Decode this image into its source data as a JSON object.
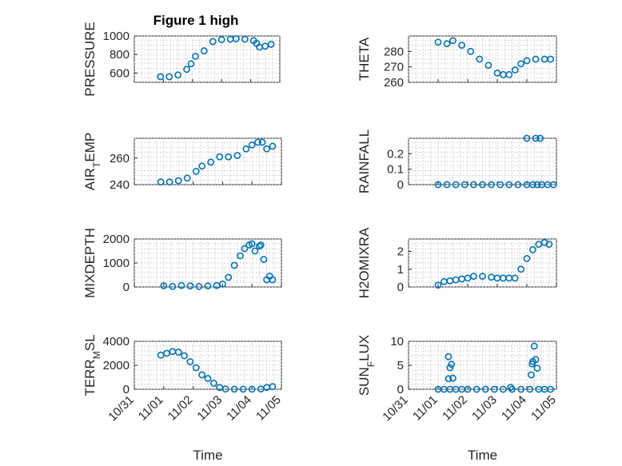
{
  "figure_title": "Figure 1 high",
  "colors": {
    "marker": "#0072BD",
    "axes": "#262626",
    "grid": "#b4b4b4"
  },
  "chart_data": [
    {
      "type": "scatter",
      "panel": "top-left",
      "ylabel_parts": [
        "PRESSURE"
      ],
      "xlabel": "",
      "title": "Figure 1 high",
      "x_ticks": [
        "10/31",
        "11/01",
        "11/02",
        "11/03",
        "11/04",
        "11/05"
      ],
      "xlim": [
        0,
        5
      ],
      "ylim": [
        500,
        1000
      ],
      "y_ticks": [
        600,
        800,
        1000
      ],
      "grid": true,
      "series": [
        {
          "x": [
            0.9,
            1.2,
            1.5,
            1.8,
            1.95,
            2.1,
            2.4,
            2.7,
            3.0,
            3.3,
            3.5,
            3.8,
            4.1,
            4.2,
            4.3,
            4.5,
            4.7
          ],
          "y": [
            560,
            560,
            580,
            640,
            700,
            780,
            840,
            940,
            960,
            965,
            970,
            965,
            950,
            920,
            880,
            890,
            910
          ]
        }
      ]
    },
    {
      "type": "scatter",
      "panel": "top-right",
      "ylabel_parts": [
        "THETA"
      ],
      "xlabel": "",
      "x_ticks": [
        "10/31",
        "11/01",
        "11/02",
        "11/03",
        "11/04",
        "11/05"
      ],
      "xlim": [
        0,
        5
      ],
      "ylim": [
        260,
        290
      ],
      "y_ticks": [
        260,
        270,
        280
      ],
      "grid": true,
      "series": [
        {
          "x": [
            1.0,
            1.3,
            1.5,
            1.8,
            2.1,
            2.4,
            2.7,
            3.0,
            3.2,
            3.4,
            3.6,
            3.8,
            4.0,
            4.3,
            4.6,
            4.8
          ],
          "y": [
            286,
            285,
            287,
            284,
            280,
            275,
            271,
            266,
            265,
            265,
            268,
            272,
            274,
            275,
            275,
            275
          ]
        }
      ]
    },
    {
      "type": "scatter",
      "panel": "row2-left",
      "ylabel_parts": [
        "AIR",
        "T",
        "EMP"
      ],
      "xlabel": "",
      "x_ticks": [
        "10/31",
        "11/01",
        "11/02",
        "11/03",
        "11/04",
        "11/05"
      ],
      "xlim": [
        0,
        5
      ],
      "ylim": [
        240,
        275
      ],
      "y_ticks": [
        240,
        260
      ],
      "grid": true,
      "series": [
        {
          "x": [
            0.9,
            1.2,
            1.5,
            1.8,
            2.1,
            2.3,
            2.6,
            2.9,
            3.2,
            3.5,
            3.8,
            4.0,
            4.2,
            4.35,
            4.5,
            4.7
          ],
          "y": [
            242,
            242,
            243,
            245,
            250,
            254,
            257,
            261,
            261,
            262,
            267,
            270,
            272,
            272,
            267,
            269
          ]
        }
      ]
    },
    {
      "type": "scatter",
      "panel": "row2-right",
      "ylabel_parts": [
        "RAINFALL"
      ],
      "xlabel": "",
      "x_ticks": [
        "10/31",
        "11/01",
        "11/02",
        "11/03",
        "11/04",
        "11/05"
      ],
      "xlim": [
        0,
        5
      ],
      "ylim": [
        0,
        0.3
      ],
      "y_ticks": [
        0,
        0.1,
        0.2
      ],
      "grid": true,
      "series": [
        {
          "x": [
            1.0,
            1.3,
            1.6,
            1.9,
            2.2,
            2.5,
            2.8,
            3.1,
            3.4,
            3.7,
            4.0,
            4.2,
            4.35,
            4.5,
            4.7,
            4.9,
            4.0,
            4.3,
            4.45
          ],
          "y": [
            0,
            0,
            0,
            0,
            0,
            0,
            0,
            0,
            0,
            0,
            0,
            0,
            0,
            0,
            0,
            0,
            0.3,
            0.3,
            0.3
          ]
        }
      ]
    },
    {
      "type": "scatter",
      "panel": "row3-left",
      "ylabel_parts": [
        "MIXDEPTH"
      ],
      "xlabel": "",
      "x_ticks": [
        "10/31",
        "11/01",
        "11/02",
        "11/03",
        "11/04",
        "11/05"
      ],
      "xlim": [
        0,
        5
      ],
      "ylim": [
        0,
        2000
      ],
      "y_ticks": [
        0,
        1000,
        2000
      ],
      "grid": true,
      "series": [
        {
          "x": [
            1.0,
            1.3,
            1.6,
            1.9,
            2.2,
            2.5,
            2.8,
            3.0,
            3.2,
            3.4,
            3.6,
            3.75,
            3.9,
            4.0,
            4.1,
            4.25,
            4.3,
            4.4,
            4.5,
            4.6,
            4.7
          ],
          "y": [
            50,
            20,
            60,
            40,
            20,
            40,
            60,
            120,
            400,
            900,
            1300,
            1600,
            1750,
            1800,
            1500,
            1700,
            1750,
            1150,
            300,
            450,
            300
          ]
        }
      ]
    },
    {
      "type": "scatter",
      "panel": "row3-right",
      "ylabel_parts": [
        "H2OMIXRA"
      ],
      "xlabel": "",
      "x_ticks": [
        "10/31",
        "11/01",
        "11/02",
        "11/03",
        "11/04",
        "11/05"
      ],
      "xlim": [
        0,
        5
      ],
      "ylim": [
        0,
        2.7
      ],
      "y_ticks": [
        0,
        1,
        2
      ],
      "grid": true,
      "series": [
        {
          "x": [
            1.0,
            1.2,
            1.4,
            1.6,
            1.8,
            2.0,
            2.2,
            2.5,
            2.8,
            3.0,
            3.2,
            3.4,
            3.6,
            3.8,
            4.0,
            4.2,
            4.4,
            4.6,
            4.75
          ],
          "y": [
            0.1,
            0.3,
            0.35,
            0.4,
            0.45,
            0.5,
            0.6,
            0.6,
            0.55,
            0.5,
            0.5,
            0.5,
            0.5,
            1.0,
            1.6,
            2.1,
            2.4,
            2.5,
            2.4
          ]
        }
      ]
    },
    {
      "type": "scatter",
      "panel": "bottom-left",
      "ylabel_parts": [
        "TERR",
        "M",
        "SL"
      ],
      "xlabel": "Time",
      "x_ticks": [
        "10/31",
        "11/01",
        "11/02",
        "11/03",
        "11/04",
        "11/05"
      ],
      "xlim": [
        0,
        5
      ],
      "ylim": [
        0,
        4000
      ],
      "y_ticks": [
        0,
        2000,
        4000
      ],
      "grid": true,
      "series": [
        {
          "x": [
            0.9,
            1.1,
            1.3,
            1.5,
            1.7,
            1.9,
            2.1,
            2.3,
            2.5,
            2.7,
            2.9,
            3.1,
            3.4,
            3.7,
            4.0,
            4.3,
            4.5,
            4.7
          ],
          "y": [
            2850,
            3000,
            3150,
            3100,
            2800,
            2300,
            1800,
            1200,
            900,
            500,
            150,
            20,
            10,
            10,
            10,
            20,
            150,
            220
          ]
        }
      ]
    },
    {
      "type": "scatter",
      "panel": "bottom-right",
      "ylabel_parts": [
        "SUN",
        "F",
        "LUX"
      ],
      "xlabel": "Time",
      "x_ticks": [
        "10/31",
        "11/01",
        "11/02",
        "11/03",
        "11/04",
        "11/05"
      ],
      "xlim": [
        0,
        5
      ],
      "ylim": [
        0,
        10
      ],
      "y_ticks": [
        0,
        5,
        10
      ],
      "grid": true,
      "series": [
        {
          "x": [
            1.0,
            1.2,
            1.4,
            1.6,
            1.8,
            2.0,
            2.3,
            2.6,
            2.9,
            3.2,
            3.5,
            3.8,
            4.1,
            4.4,
            4.6,
            4.8,
            1.35,
            1.4,
            1.45,
            1.35,
            1.5,
            3.45,
            4.15,
            4.2,
            4.25,
            4.3,
            4.35,
            4.18
          ],
          "y": [
            0,
            0,
            0,
            0,
            0,
            0,
            0,
            0,
            0,
            0,
            0,
            0,
            0,
            0,
            0,
            0,
            2.2,
            4.5,
            5.2,
            6.8,
            2.3,
            0.4,
            3.0,
            5.8,
            9.0,
            6.2,
            4.4,
            5.3
          ]
        }
      ]
    }
  ]
}
